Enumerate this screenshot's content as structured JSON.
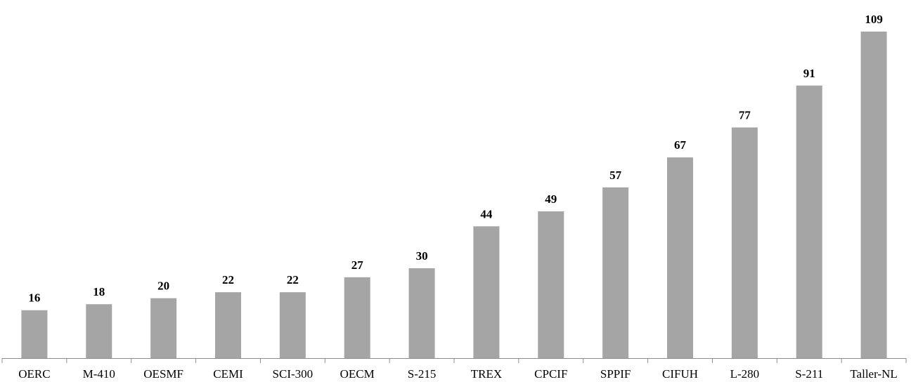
{
  "chart_data": {
    "type": "bar",
    "categories": [
      "OERC",
      "M-410",
      "OESMF",
      "CEMI",
      "SCI-300",
      "OECM",
      "S-215",
      "TREX",
      "CPCIF",
      "SPPIF",
      "CIFUH",
      "L-280",
      "S-211",
      "Taller-NL"
    ],
    "values": [
      16,
      18,
      20,
      22,
      22,
      27,
      30,
      44,
      49,
      57,
      67,
      77,
      91,
      109
    ],
    "title": "",
    "xlabel": "",
    "ylabel": "",
    "ylim": [
      0,
      109
    ],
    "grid": false,
    "legend": "none",
    "bar_color": "#a5a5a5",
    "axis_color": "#8c8c8c"
  }
}
